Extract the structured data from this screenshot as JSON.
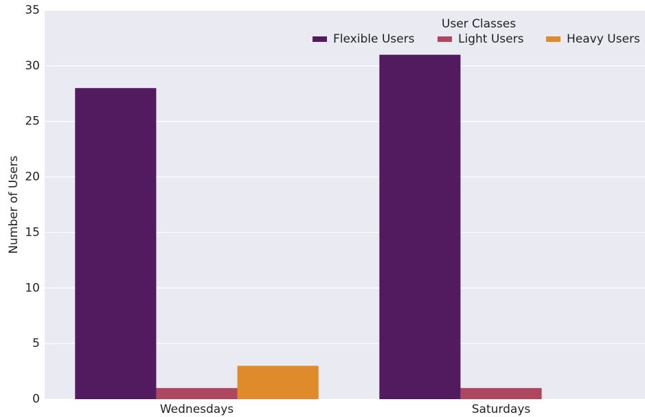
{
  "chart_data": {
    "type": "bar",
    "categories": [
      "Wednesdays",
      "Saturdays"
    ],
    "y_label": "Number of Users",
    "legend_title": "User Classes",
    "series": [
      {
        "name": "Flexible Users",
        "color": "#521b5f",
        "values": [
          28,
          31
        ]
      },
      {
        "name": "Light Users",
        "color": "#ad465e",
        "values": [
          1,
          1
        ]
      },
      {
        "name": "Heavy Users",
        "color": "#df8a2b",
        "values": [
          3,
          null
        ]
      }
    ],
    "ylim": [
      0,
      35
    ],
    "yticks": [
      0,
      5,
      10,
      15,
      20,
      25,
      30,
      35
    ],
    "grid": true,
    "legend": "upper right"
  }
}
